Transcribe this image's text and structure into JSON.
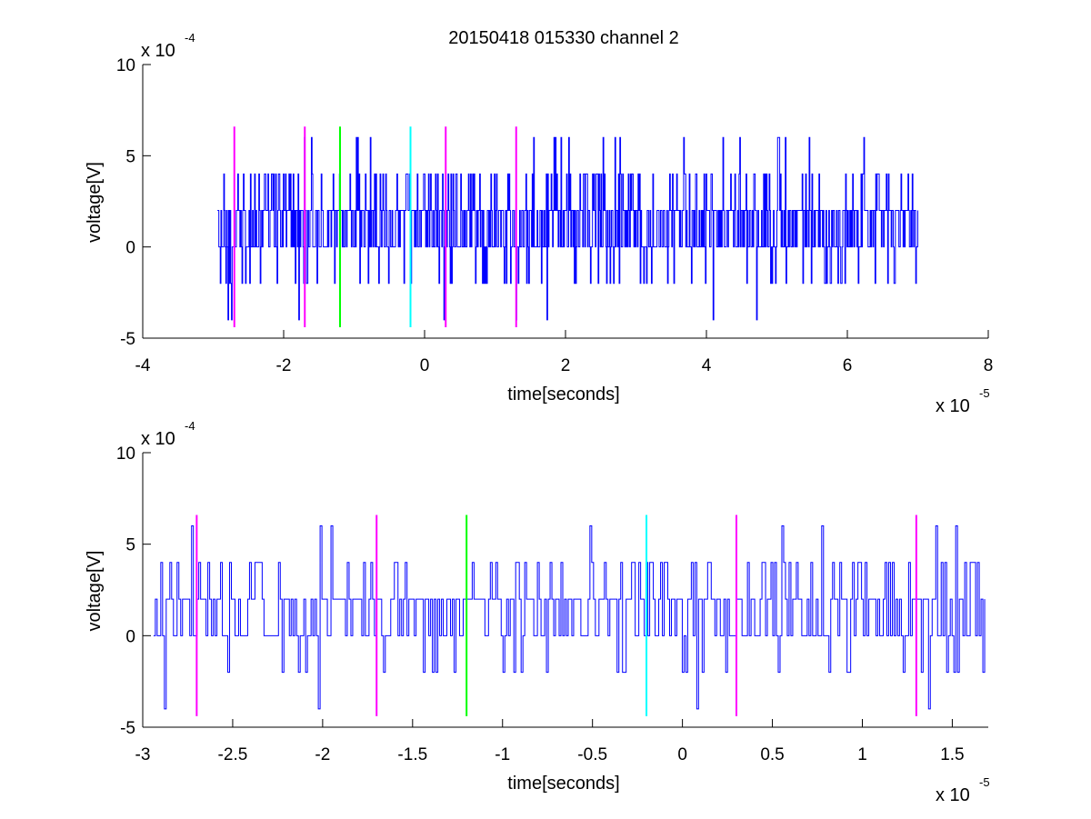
{
  "figure_title": "20150418 015330 channel 2",
  "colors": {
    "signal": "#0000ff",
    "marker_magenta": "#ff00ff",
    "marker_green": "#00ff00",
    "marker_cyan": "#00ffff",
    "axes": "#000000",
    "background": "#ffffff"
  },
  "chart_data": [
    {
      "type": "line",
      "title": "20150418 015330 channel 2",
      "xlabel": "time[seconds]",
      "ylabel": "voltage[V]",
      "xlim": [
        -4e-05,
        8e-05
      ],
      "ylim": [
        -0.0005,
        0.001
      ],
      "x_ticks": [
        -4,
        -2,
        0,
        2,
        4,
        6,
        8
      ],
      "x_tick_labels": [
        "-4",
        "-2",
        "0",
        "2",
        "4",
        "6",
        "8"
      ],
      "y_ticks": [
        -5,
        0,
        5,
        10
      ],
      "y_tick_labels": [
        "-5",
        "0",
        "5",
        "10"
      ],
      "x_multiplier": {
        "base": "x 10",
        "exponent": "-5"
      },
      "y_multiplier": {
        "base": "x 10",
        "exponent": "-4"
      },
      "grid": false,
      "signal": {
        "x_start": -2.94e-05,
        "x_end": 7e-05,
        "samples": 1000,
        "y_levels": [
          -0.0004,
          -0.0002,
          0,
          0.0002,
          0.0004,
          0.0006
        ],
        "y_min": -0.0004,
        "y_max": 0.0006
      },
      "markers": [
        {
          "x": -2.7e-05,
          "color": "magenta"
        },
        {
          "x": -1.7e-05,
          "color": "magenta"
        },
        {
          "x": -1.2e-05,
          "color": "green"
        },
        {
          "x": -2e-06,
          "color": "cyan"
        },
        {
          "x": 3e-06,
          "color": "magenta"
        },
        {
          "x": 1.3e-05,
          "color": "magenta"
        }
      ],
      "marker_ylim": [
        -0.00044,
        0.00066
      ]
    },
    {
      "type": "line",
      "title": "",
      "xlabel": "time[seconds]",
      "ylabel": "voltage[V]",
      "xlim": [
        -3e-05,
        1.7e-05
      ],
      "ylim": [
        -0.0005,
        0.001
      ],
      "x_ticks": [
        -3,
        -2.5,
        -2,
        -1.5,
        -1,
        -0.5,
        0,
        0.5,
        1,
        1.5
      ],
      "x_tick_labels": [
        "-3",
        "-2.5",
        "-2",
        "-1.5",
        "-1",
        "-0.5",
        "0",
        "0.5",
        "1",
        "1.5"
      ],
      "y_ticks": [
        -5,
        0,
        5,
        10
      ],
      "y_tick_labels": [
        "-5",
        "0",
        "5",
        "10"
      ],
      "x_multiplier": {
        "base": "x 10",
        "exponent": "-5"
      },
      "y_multiplier": {
        "base": "x 10",
        "exponent": "-4"
      },
      "grid": false,
      "signal": {
        "x_start": -2.94e-05,
        "x_end": 1.68e-05,
        "samples": 460,
        "y_levels": [
          -0.0004,
          -0.0002,
          0,
          0.0002,
          0.0004,
          0.0006
        ],
        "y_min": -0.0004,
        "y_max": 0.0006
      },
      "markers": [
        {
          "x": -2.7e-05,
          "color": "magenta"
        },
        {
          "x": -1.7e-05,
          "color": "magenta"
        },
        {
          "x": -1.2e-05,
          "color": "green"
        },
        {
          "x": -2e-06,
          "color": "cyan"
        },
        {
          "x": 3e-06,
          "color": "magenta"
        },
        {
          "x": 1.3e-05,
          "color": "magenta"
        }
      ],
      "marker_ylim": [
        -0.00044,
        0.00066
      ]
    }
  ]
}
